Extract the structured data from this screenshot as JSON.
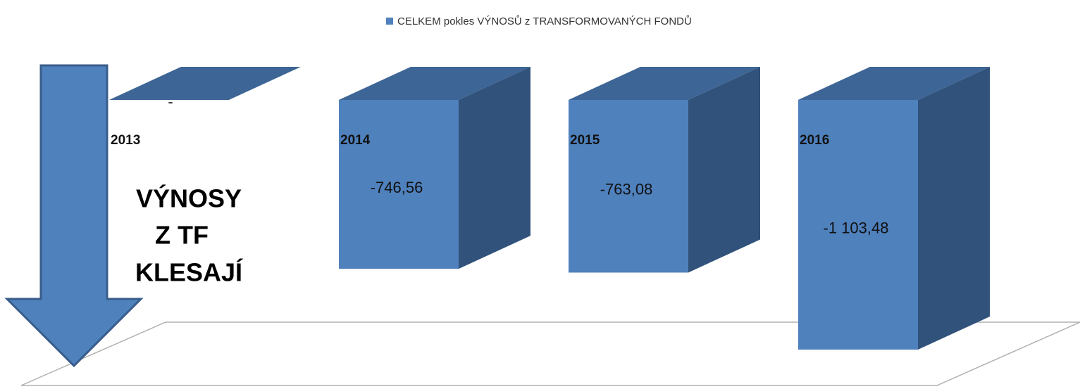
{
  "chart_data": {
    "type": "bar3d",
    "series": [
      {
        "name": "CELKEM pokles VÝNOSŮ z TRANSFORMOVANÝCH FONDŮ",
        "color": "#4f81bd",
        "values": [
          0,
          -746.56,
          -763.08,
          -1103.48
        ],
        "value_labels": [
          "-",
          "-746,56",
          "-763,08",
          "-1 103,48"
        ]
      }
    ],
    "categories": [
      "2013",
      "2014",
      "2015",
      "2016"
    ],
    "annotation": [
      "VÝNOSY",
      "Z TF",
      "KLESAJÍ"
    ]
  }
}
